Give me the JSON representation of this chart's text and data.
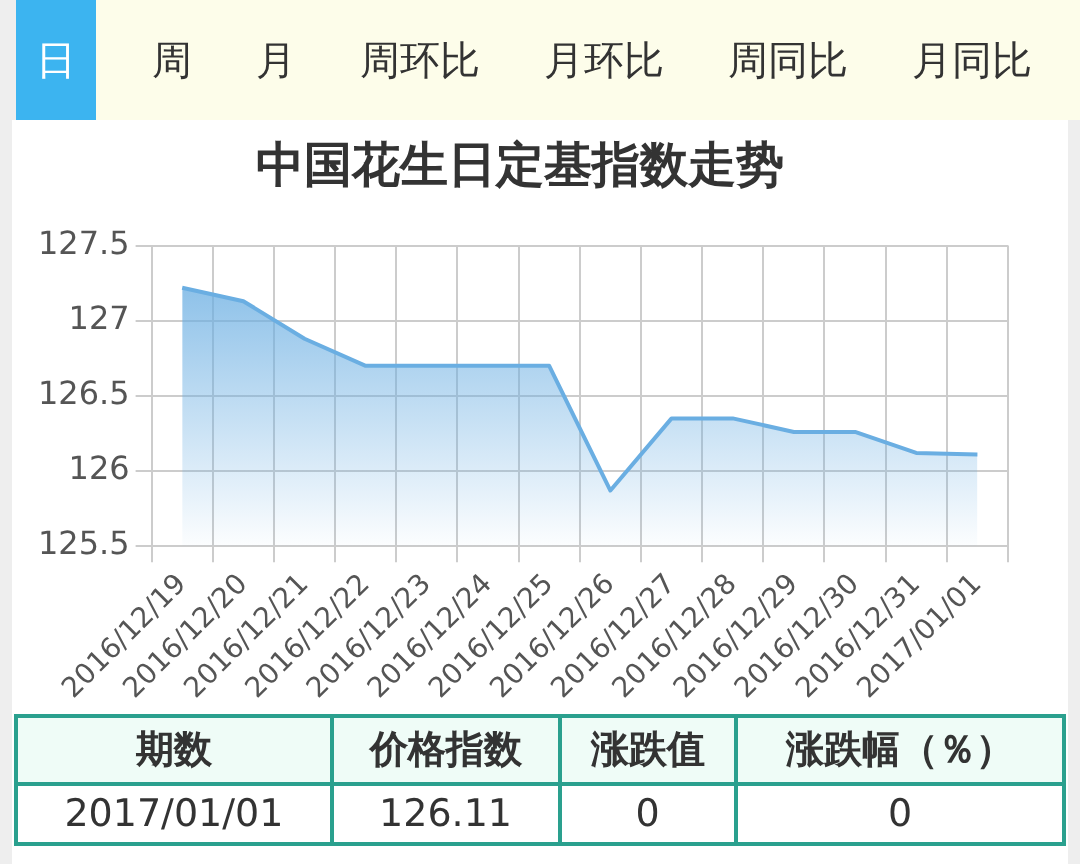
{
  "chart_data": {
    "type": "area",
    "title": "中国花生日定基指数走势",
    "categories": [
      "2016/12/19",
      "2016/12/20",
      "2016/12/21",
      "2016/12/22",
      "2016/12/23",
      "2016/12/24",
      "2016/12/25",
      "2016/12/26",
      "2016/12/27",
      "2016/12/28",
      "2016/12/29",
      "2016/12/30",
      "2016/12/31",
      "2017/01/01"
    ],
    "values": [
      127.22,
      127.13,
      126.88,
      126.7,
      126.7,
      126.7,
      126.7,
      125.87,
      126.35,
      126.35,
      126.26,
      126.26,
      126.12,
      126.11
    ],
    "color": "#6aaee2",
    "ylim": [
      125.5,
      127.5
    ],
    "yticks": [
      125.5,
      126,
      126.5,
      127,
      127.5
    ],
    "grid": true,
    "legend": false,
    "annotations": [
      "日",
      "周",
      "月",
      "周环比",
      "月环比",
      "周同比",
      "月同比",
      "期数",
      "价格指数",
      "涨跌值",
      "涨跌幅（％）",
      "2017/01/01",
      "126.11",
      "0",
      "0"
    ]
  }
}
